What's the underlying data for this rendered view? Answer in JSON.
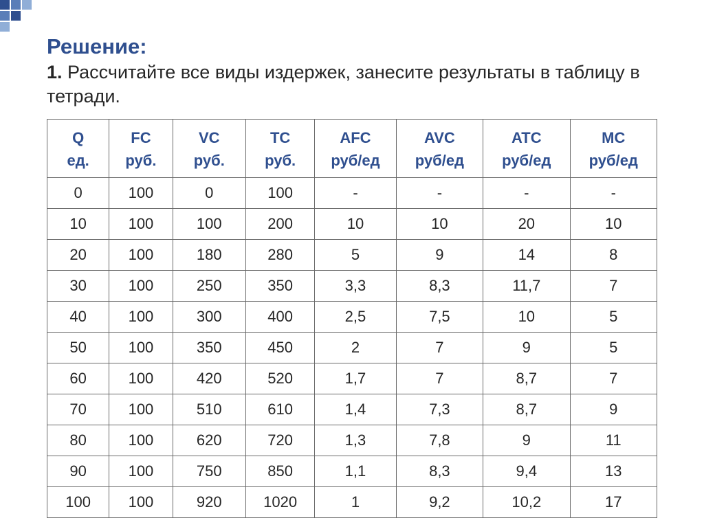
{
  "decoration": {
    "squares": [
      {
        "l": 0,
        "t": 0,
        "w": 14,
        "h": 14,
        "c": "#2f4f8f"
      },
      {
        "l": 16,
        "t": 0,
        "w": 14,
        "h": 14,
        "c": "#5a7eb8"
      },
      {
        "l": 32,
        "t": 0,
        "w": 14,
        "h": 14,
        "c": "#90aed7"
      },
      {
        "l": 0,
        "t": 16,
        "w": 14,
        "h": 14,
        "c": "#5a7eb8"
      },
      {
        "l": 16,
        "t": 16,
        "w": 14,
        "h": 14,
        "c": "#2f4f8f"
      },
      {
        "l": 0,
        "t": 32,
        "w": 14,
        "h": 14,
        "c": "#90aed7"
      }
    ]
  },
  "title": {
    "text": "Решение:",
    "color": "#2f4f8f"
  },
  "subtitle": {
    "num": "1.",
    "text": "Рассчитайте все виды издержек, занесите результаты в таблицу в тетради."
  },
  "table": {
    "border_color": "#686868",
    "header_color": "#2f4f8f",
    "col_widths": [
      "90px",
      "92px",
      "106px",
      "100px",
      "118px",
      "126px",
      "126px",
      "126px"
    ],
    "columns": [
      {
        "label": "Q",
        "unit": "ед."
      },
      {
        "label": "FC",
        "unit": "руб."
      },
      {
        "label": "VC",
        "unit": "руб."
      },
      {
        "label": "TC",
        "unit": "руб."
      },
      {
        "label": "AFC",
        "unit": "руб/ед"
      },
      {
        "label": "AVC",
        "unit": "руб/ед"
      },
      {
        "label": "ATC",
        "unit": "руб/ед"
      },
      {
        "label": "MC",
        "unit": "руб/ед"
      }
    ],
    "rows": [
      [
        "0",
        "100",
        "0",
        "100",
        "-",
        "-",
        "-",
        "-"
      ],
      [
        "10",
        "100",
        "100",
        "200",
        "10",
        "10",
        "20",
        "10"
      ],
      [
        "20",
        "100",
        "180",
        "280",
        "5",
        "9",
        "14",
        "8"
      ],
      [
        "30",
        "100",
        "250",
        "350",
        "3,3",
        "8,3",
        "11,7",
        "7"
      ],
      [
        "40",
        "100",
        "300",
        "400",
        "2,5",
        "7,5",
        "10",
        "5"
      ],
      [
        "50",
        "100",
        "350",
        "450",
        "2",
        "7",
        "9",
        "5"
      ],
      [
        "60",
        "100",
        "420",
        "520",
        "1,7",
        "7",
        "8,7",
        "7"
      ],
      [
        "70",
        "100",
        "510",
        "610",
        "1,4",
        "7,3",
        "8,7",
        "9"
      ],
      [
        "80",
        "100",
        "620",
        "720",
        "1,3",
        "7,8",
        "9",
        "11"
      ],
      [
        "90",
        "100",
        "750",
        "850",
        "1,1",
        "8,3",
        "9,4",
        "13"
      ],
      [
        "100",
        "100",
        "920",
        "1020",
        "1",
        "9,2",
        "10,2",
        "17"
      ]
    ]
  }
}
